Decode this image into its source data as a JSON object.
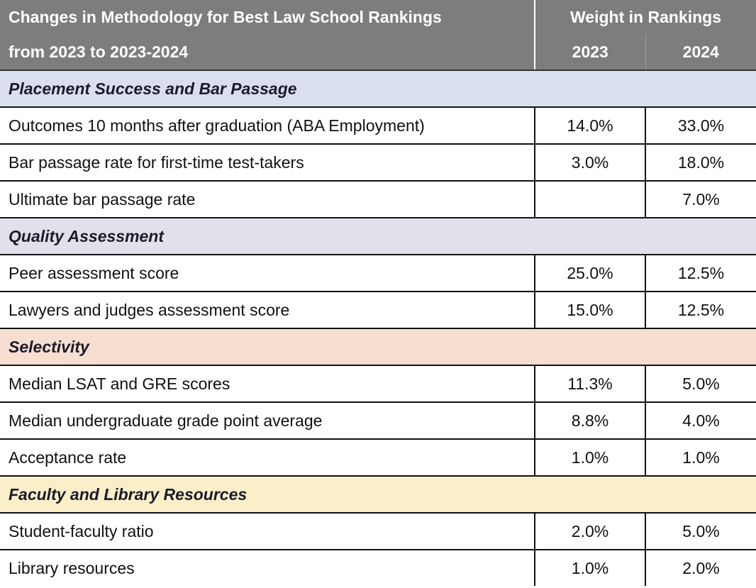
{
  "header": {
    "title_line1": "Changes in Methodology for Best Law School Rankings",
    "title_line2": "from 2023 to 2023-2024",
    "weight_label": "Weight in Rankings",
    "year_a": "2023",
    "year_b": "2024"
  },
  "sections": [
    {
      "name": "Placement Success and Bar Passage",
      "color": "#d9dfef",
      "rows": [
        {
          "label": "Outcomes 10 months after graduation (ABA Employment)",
          "y2023": "14.0%",
          "y2024": "33.0%"
        },
        {
          "label": "Bar passage rate for first-time test-takers",
          "y2023": "3.0%",
          "y2024": "18.0%"
        },
        {
          "label": "Ultimate bar passage rate",
          "y2023": "",
          "y2024": "7.0%"
        }
      ]
    },
    {
      "name": "Quality Assessment",
      "color": "#e2e0eb",
      "rows": [
        {
          "label": "Peer assessment score",
          "y2023": "25.0%",
          "y2024": "12.5%"
        },
        {
          "label": "Lawyers and judges assessment score",
          "y2023": "15.0%",
          "y2024": "12.5%"
        }
      ]
    },
    {
      "name": "Selectivity",
      "color": "#f6dfd1",
      "rows": [
        {
          "label": "Median LSAT and GRE scores",
          "y2023": "11.3%",
          "y2024": "5.0%"
        },
        {
          "label": "Median undergraduate grade point average",
          "y2023": "8.8%",
          "y2024": "4.0%"
        },
        {
          "label": "Acceptance rate",
          "y2023": "1.0%",
          "y2024": "1.0%"
        }
      ]
    },
    {
      "name": "Faculty and Library Resources",
      "color": "#fbefc9",
      "rows": [
        {
          "label": "Student-faculty ratio",
          "y2023": "2.0%",
          "y2024": "5.0%"
        },
        {
          "label": "Library resources",
          "y2023": "1.0%",
          "y2024": "2.0%"
        }
      ]
    }
  ]
}
